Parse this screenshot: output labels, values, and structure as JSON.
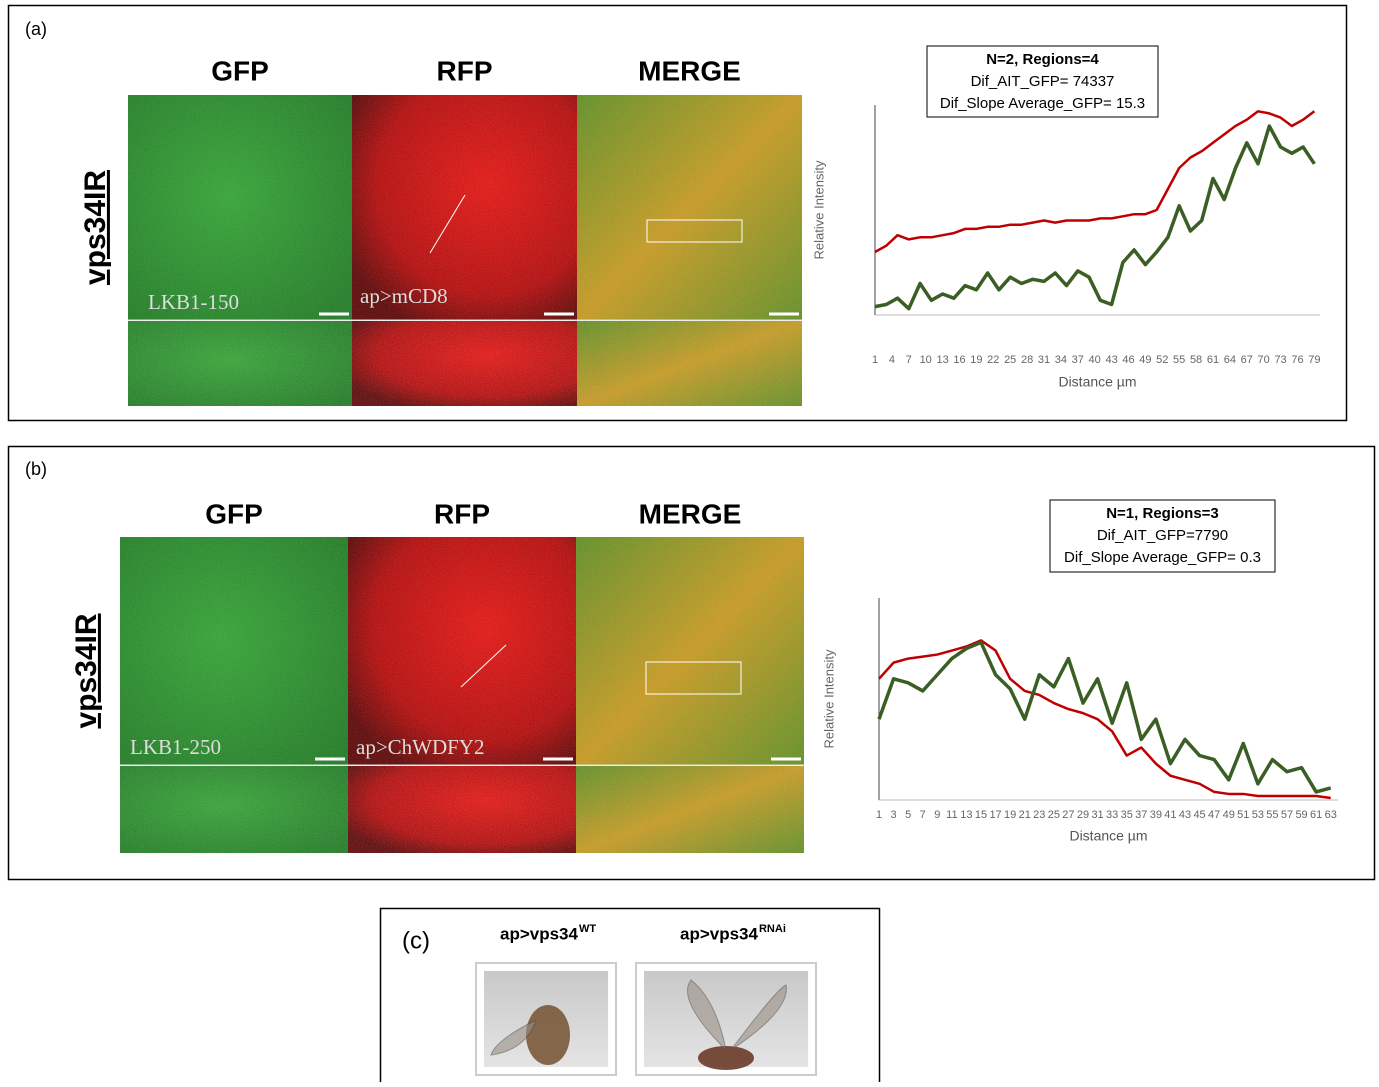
{
  "panels": [
    {
      "label": "(a)",
      "row_label": "vps34IR",
      "columns": [
        "GFP",
        "RFP",
        "MERGE"
      ],
      "image_labels": [
        "LKB1-150",
        "ap>mCD8"
      ],
      "stats": [
        "N=2, Regions=4",
        "Dif_AIT_GFP= 74337",
        "Dif_Slope Average_GFP= 15.3"
      ]
    },
    {
      "label": "(b)",
      "row_label": "vps34IR",
      "columns": [
        "GFP",
        "RFP",
        "MERGE"
      ],
      "image_labels": [
        "LKB1-250",
        "ap>ChWDFY2"
      ],
      "stats": [
        "N=1, Regions=3",
        "Dif_AIT_GFP=7790",
        "Dif_Slope Average_GFP= 0.3"
      ]
    }
  ],
  "chart_data": [
    {
      "type": "line",
      "y_label": "Relative Intensity",
      "x_label": "Distance µm",
      "x": [
        1,
        3,
        5,
        7,
        9,
        11,
        13,
        15,
        17,
        19,
        21,
        23,
        25,
        27,
        29,
        31,
        33,
        35,
        37,
        39,
        41,
        43,
        45,
        47,
        49,
        51,
        53,
        55,
        57,
        59,
        61,
        63,
        65,
        67,
        69,
        71,
        73,
        75,
        77,
        79
      ],
      "xlim": [
        1,
        80
      ],
      "ylim": [
        0,
        100
      ],
      "xticks": [
        1,
        4,
        7,
        10,
        13,
        16,
        19,
        22,
        25,
        28,
        31,
        34,
        37,
        40,
        43,
        46,
        49,
        52,
        55,
        58,
        61,
        64,
        67,
        70,
        73,
        76,
        79
      ],
      "series": [
        {
          "color": "#c00000",
          "values": [
            30,
            33,
            38,
            36,
            37,
            37,
            38,
            39,
            41,
            41,
            42,
            42,
            43,
            43,
            44,
            45,
            44,
            45,
            45,
            45,
            46,
            46,
            47,
            48,
            48,
            50,
            60,
            70,
            75,
            78,
            82,
            86,
            90,
            93,
            97,
            96,
            94,
            90,
            93,
            97
          ]
        },
        {
          "color": "#3b5e25",
          "values": [
            4,
            5,
            8,
            3,
            15,
            7,
            10,
            8,
            14,
            12,
            20,
            12,
            18,
            15,
            17,
            16,
            20,
            14,
            21,
            18,
            7,
            5,
            25,
            31,
            24,
            30,
            37,
            52,
            40,
            45,
            65,
            55,
            70,
            82,
            72,
            90,
            80,
            77,
            80,
            72
          ]
        }
      ]
    },
    {
      "type": "line",
      "y_label": "Relative Intensity",
      "x_label": "Distance µm",
      "x": [
        1,
        3,
        5,
        7,
        9,
        11,
        13,
        15,
        17,
        19,
        21,
        23,
        25,
        27,
        29,
        31,
        33,
        35,
        37,
        39,
        41,
        43,
        45,
        47,
        49,
        51,
        53,
        55,
        57,
        59,
        61,
        63
      ],
      "xlim": [
        1,
        64
      ],
      "ylim": [
        0,
        100
      ],
      "xticks": [
        1,
        3,
        5,
        7,
        9,
        11,
        13,
        15,
        17,
        19,
        21,
        23,
        25,
        27,
        29,
        31,
        33,
        35,
        37,
        39,
        41,
        43,
        45,
        47,
        49,
        51,
        53,
        55,
        57,
        59,
        61,
        63
      ],
      "series": [
        {
          "color": "#c00000",
          "values": [
            60,
            68,
            70,
            71,
            72,
            74,
            76,
            79,
            74,
            60,
            54,
            52,
            48,
            45,
            43,
            40,
            34,
            22,
            26,
            18,
            12,
            10,
            8,
            4,
            3,
            3,
            2,
            2,
            2,
            2,
            2,
            1
          ]
        },
        {
          "color": "#3b5e25",
          "values": [
            40,
            60,
            58,
            54,
            62,
            70,
            75,
            78,
            62,
            55,
            40,
            62,
            56,
            70,
            48,
            60,
            38,
            58,
            30,
            40,
            18,
            30,
            22,
            20,
            10,
            28,
            8,
            20,
            14,
            16,
            4,
            6
          ]
        }
      ]
    }
  ],
  "panel_c": {
    "label": "(c)",
    "images": [
      {
        "base": "ap>vps34",
        "sup": "WT"
      },
      {
        "base": "ap>vps34",
        "sup": "RNAi"
      }
    ]
  }
}
